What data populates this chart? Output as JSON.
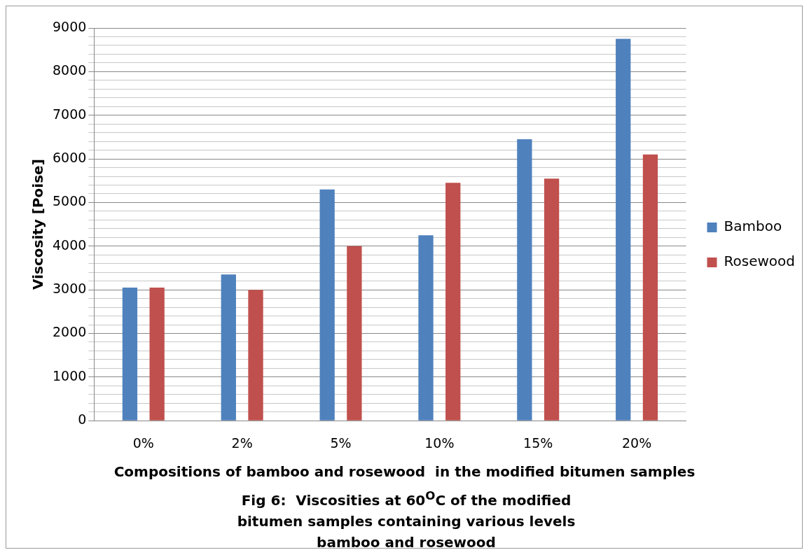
{
  "chart_data": {
    "type": "bar",
    "xlabel": "Compositions of bamboo and rosewood  in the modified bitumen samples",
    "ylabel": "Viscosity [Poise]",
    "categories": [
      "0%",
      "2%",
      "5%",
      "10%",
      "15%",
      "20%"
    ],
    "series": [
      {
        "name": "Bamboo",
        "color": "#4f81bd",
        "values": [
          3050,
          3350,
          5300,
          4250,
          6450,
          8750
        ]
      },
      {
        "name": "Rosewood",
        "color": "#c0504d",
        "values": [
          3050,
          3000,
          4000,
          5450,
          5550,
          6100
        ]
      }
    ],
    "ylim": [
      0,
      9000
    ],
    "yticks": [
      0,
      {
        "value": 200,
        "label": null
      },
      {
        "value": 400,
        "label": null
      },
      {
        "value": 600,
        "label": null
      },
      {
        "value": 800,
        "label": null
      },
      1000,
      {
        "value": 1200,
        "label": null
      },
      {
        "value": 1400,
        "label": null
      },
      {
        "value": 1600,
        "label": null
      },
      {
        "value": 1800,
        "label": null
      },
      2000,
      {
        "value": 2200,
        "label": null
      },
      {
        "value": 2400,
        "label": null
      },
      {
        "value": 2600,
        "label": null
      },
      {
        "value": 2800,
        "label": null
      },
      3000,
      {
        "value": 3200,
        "label": null
      },
      {
        "value": 3400,
        "label": null
      },
      {
        "value": 3600,
        "label": null
      },
      {
        "value": 3800,
        "label": null
      },
      4000,
      {
        "value": 4200,
        "label": null
      },
      {
        "value": 4400,
        "label": null
      },
      {
        "value": 4600,
        "label": null
      },
      {
        "value": 4800,
        "label": null
      },
      5000,
      {
        "value": 5200,
        "label": null
      },
      {
        "value": 5400,
        "label": null
      },
      {
        "value": 5600,
        "label": null
      },
      {
        "value": 5800,
        "label": null
      },
      6000,
      {
        "value": 6200,
        "label": null
      },
      {
        "value": 6400,
        "label": null
      },
      {
        "value": 6600,
        "label": null
      },
      {
        "value": 6800,
        "label": null
      },
      7000,
      {
        "value": 7200,
        "label": null
      },
      {
        "value": 7400,
        "label": null
      },
      {
        "value": 7600,
        "label": null
      },
      {
        "value": 7800,
        "label": null
      },
      8000,
      {
        "value": 8200,
        "label": null
      },
      {
        "value": 8400,
        "label": null
      },
      {
        "value": 8600,
        "label": null
      },
      {
        "value": 8800,
        "label": null
      },
      9000
    ],
    "grid": "y",
    "legend": "right",
    "annotations": [
      "Fig 6:  Viscosities at 60$^{O}$C of the modified bitumen samples containing various levels bamboo and rosewood"
    ]
  }
}
